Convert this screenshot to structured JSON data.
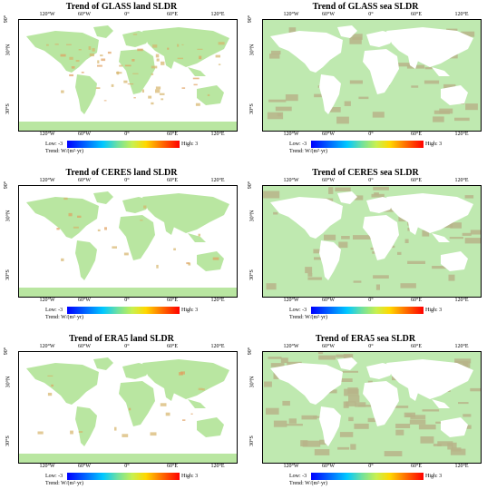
{
  "colors": {
    "land_base": "#b9e6a1",
    "land_hot": "#d6b36a",
    "sea_base": "#bfe9b0",
    "sea_patch": "#b7b48a",
    "ocean_blank": "#ffffff",
    "colorbar": [
      "#0000ff",
      "#00c8ff",
      "#c8f050",
      "#ffd800",
      "#ff0000"
    ]
  },
  "axes": {
    "lon_ticks": [
      "120°W",
      "60°W",
      "0°",
      "60°E",
      "120°E"
    ],
    "lat_ticks": [
      "90°",
      "30°N",
      "30°S"
    ]
  },
  "legend": {
    "low": "Low: -3",
    "high": "High: 3",
    "unit": "Trend: W/(m²·yr)"
  },
  "panels": [
    {
      "id": "glass-land",
      "title": "Trend of GLASS land SLDR",
      "kind": "land",
      "warmth": "high"
    },
    {
      "id": "glass-sea",
      "title": "Trend of GLASS sea SLDR",
      "kind": "sea",
      "warmth": "low"
    },
    {
      "id": "ceres-land",
      "title": "Trend of CERES land SLDR",
      "kind": "land",
      "warmth": "low"
    },
    {
      "id": "ceres-sea",
      "title": "Trend of CERES sea SLDR",
      "kind": "sea",
      "warmth": "mid"
    },
    {
      "id": "era5-land",
      "title": "Trend of ERA5 land SLDR",
      "kind": "land",
      "warmth": "low"
    },
    {
      "id": "era5-sea",
      "title": "Trend of ERA5 sea SLDR",
      "kind": "sea",
      "warmth": "high"
    }
  ]
}
